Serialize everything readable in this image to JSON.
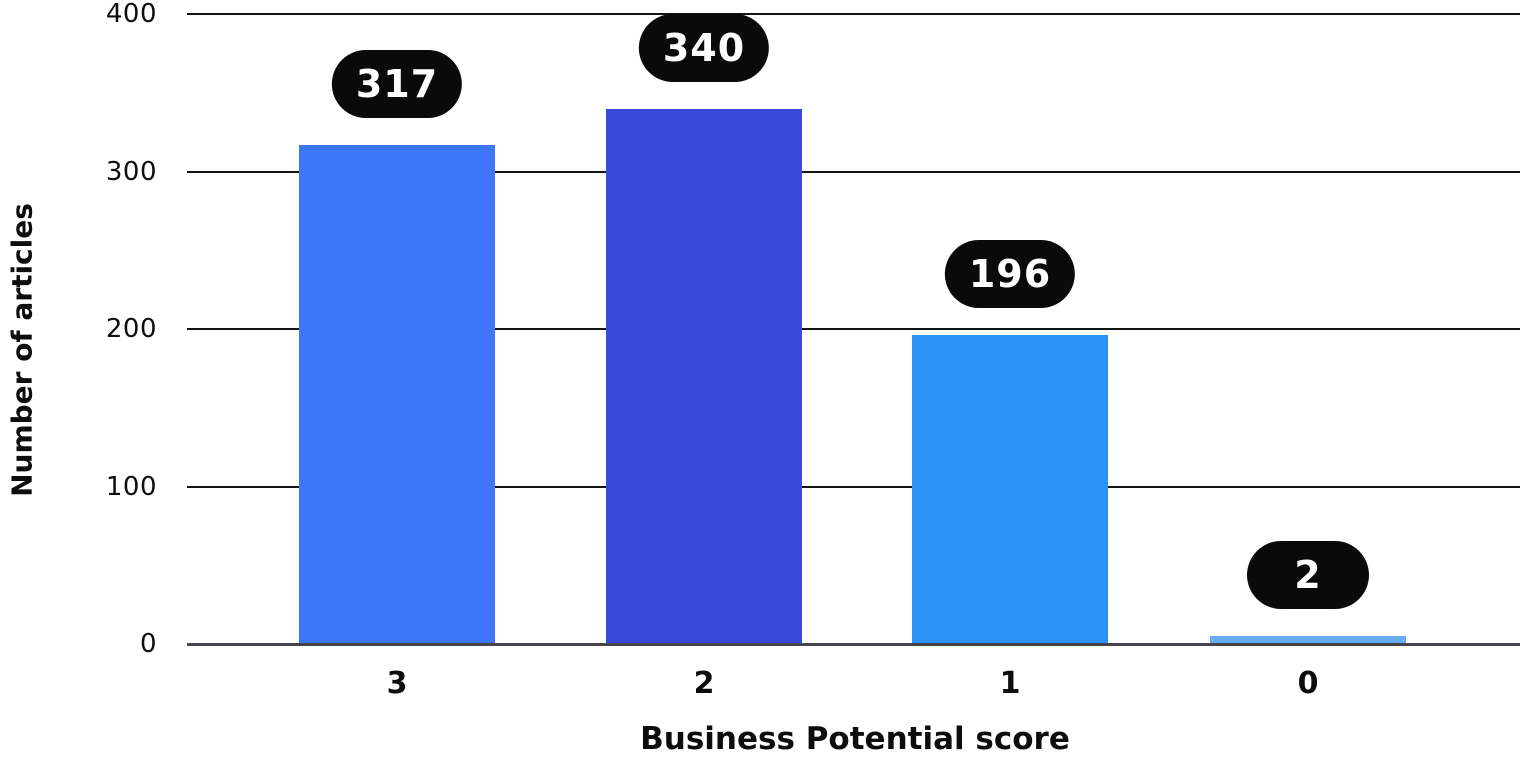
{
  "chart_data": {
    "type": "bar",
    "categories": [
      "3",
      "2",
      "1",
      "0"
    ],
    "values": [
      317,
      340,
      196,
      2
    ],
    "bar_colors": [
      "#3D76FA",
      "#3B49DD",
      "#2A93F3",
      "#67ADF4"
    ],
    "title": "",
    "xlabel": "Business Potential score",
    "ylabel": "Number of articles",
    "y_ticks": [
      0,
      100,
      200,
      300,
      400
    ],
    "ylim": [
      0,
      400
    ],
    "grid": true,
    "legend_position": "none",
    "style": {
      "badge_bg": "#0A0A0A",
      "badge_text": "#FFFFFF",
      "gridline_color": "#141414",
      "baseline_color": "#44444A",
      "text_color": "#0D0D0D",
      "background": "#FFFFFF"
    }
  }
}
